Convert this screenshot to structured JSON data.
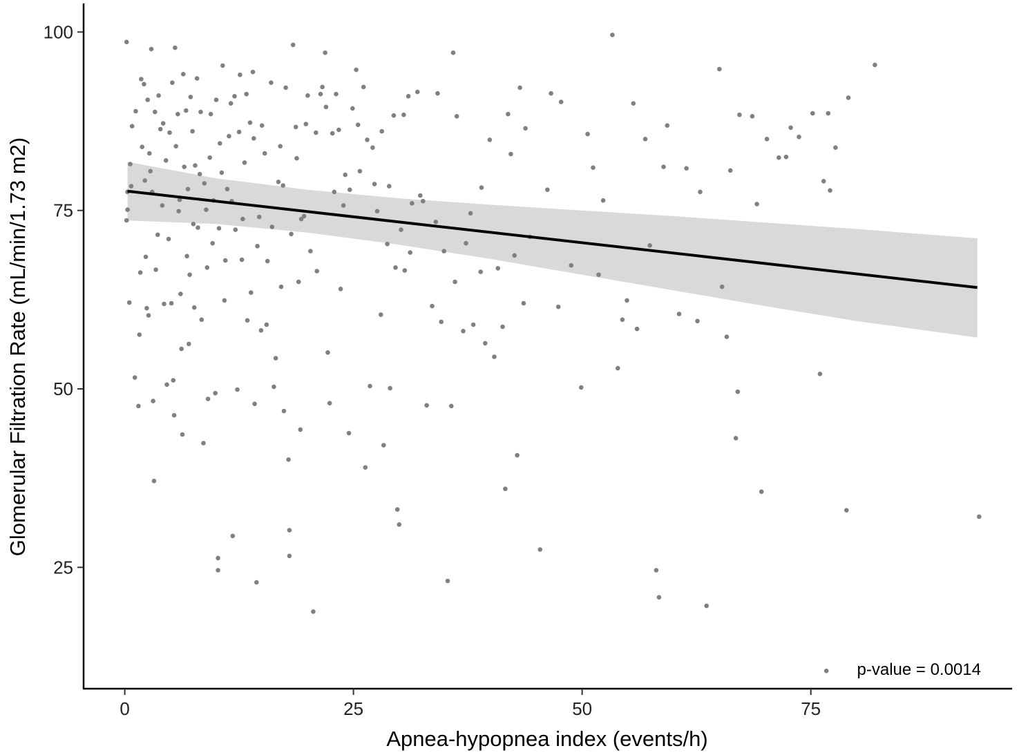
{
  "chart_data": {
    "type": "scatter",
    "xlabel": "Apnea-hypopnea index (events/h)",
    "ylabel": "Glomerular Filtration Rate (mL/min/1.73 m2)",
    "xlim": [
      -4.5,
      97
    ],
    "ylim": [
      8,
      104
    ],
    "x_ticks": [
      0,
      25,
      50,
      75
    ],
    "y_ticks": [
      25,
      50,
      75,
      100
    ],
    "x_tick_labels": [
      "0",
      "25",
      "50",
      "75"
    ],
    "y_tick_labels": [
      "25",
      "50",
      "75",
      "100"
    ],
    "grid": false,
    "annotation": "p-value = 0.0014",
    "colors": {
      "points": "#808080",
      "fit_line": "#000000",
      "confidence_band": "#d9d9d9",
      "axis": "#000000"
    },
    "fit_line": {
      "x": [
        0.3,
        93.2
      ],
      "y": [
        77.7,
        64.2
      ]
    },
    "confidence_band": {
      "x": [
        0.3,
        10,
        20,
        30,
        40,
        50,
        60,
        70,
        80,
        93.2
      ],
      "upper": [
        81.8,
        79.5,
        77.9,
        76.7,
        75.8,
        75.0,
        74.2,
        73.3,
        72.4,
        71.1
      ],
      "lower": [
        73.6,
        73.1,
        71.9,
        70.2,
        68.2,
        66.0,
        63.8,
        61.6,
        59.5,
        57.2
      ]
    },
    "points": [
      [
        0.2,
        98.6
      ],
      [
        2.9,
        97.6
      ],
      [
        5.5,
        97.8
      ],
      [
        0.2,
        73.6
      ],
      [
        0.3,
        75.1
      ],
      [
        0.5,
        62.1
      ],
      [
        0.7,
        78.4
      ],
      [
        0.8,
        86.8
      ],
      [
        1.1,
        51.6
      ],
      [
        1.5,
        47.6
      ],
      [
        1.6,
        57.6
      ],
      [
        1.8,
        93.4
      ],
      [
        2.1,
        92.7
      ],
      [
        2.3,
        68.5
      ],
      [
        2.4,
        61.3
      ],
      [
        2.5,
        90.5
      ],
      [
        2.7,
        83.0
      ],
      [
        2.8,
        80.5
      ],
      [
        3.0,
        77.6
      ],
      [
        3.1,
        48.3
      ],
      [
        3.2,
        37.1
      ],
      [
        3.4,
        66.7
      ],
      [
        3.7,
        91.1
      ],
      [
        3.9,
        86.4
      ],
      [
        4.1,
        75.7
      ],
      [
        4.3,
        61.9
      ],
      [
        4.6,
        50.6
      ],
      [
        4.9,
        85.9
      ],
      [
        5.1,
        62.0
      ],
      [
        5.3,
        51.2
      ],
      [
        5.4,
        46.3
      ],
      [
        5.8,
        88.5
      ],
      [
        6.0,
        76.5
      ],
      [
        6.2,
        55.6
      ],
      [
        6.3,
        43.6
      ],
      [
        6.5,
        81.1
      ],
      [
        6.8,
        68.6
      ],
      [
        7.0,
        56.3
      ],
      [
        7.2,
        90.9
      ],
      [
        7.5,
        73.1
      ],
      [
        7.6,
        61.4
      ],
      [
        7.9,
        93.5
      ],
      [
        8.2,
        80.1
      ],
      [
        8.4,
        59.7
      ],
      [
        8.6,
        42.4
      ],
      [
        8.9,
        75.1
      ],
      [
        9.1,
        48.6
      ],
      [
        9.4,
        88.5
      ],
      [
        9.6,
        70.4
      ],
      [
        9.9,
        49.4
      ],
      [
        10.2,
        26.3
      ],
      [
        10.2,
        24.6
      ],
      [
        10.4,
        84.4
      ],
      [
        10.7,
        95.3
      ],
      [
        10.9,
        62.4
      ],
      [
        11.2,
        78.0
      ],
      [
        11.6,
        90.0
      ],
      [
        11.8,
        29.4
      ],
      [
        12.1,
        72.3
      ],
      [
        12.3,
        49.9
      ],
      [
        12.6,
        94.0
      ],
      [
        12.8,
        68.1
      ],
      [
        13.1,
        81.7
      ],
      [
        13.4,
        59.6
      ],
      [
        13.7,
        87.3
      ],
      [
        14.0,
        94.4
      ],
      [
        14.2,
        47.9
      ],
      [
        14.4,
        22.9
      ],
      [
        14.7,
        74.1
      ],
      [
        14.9,
        58.2
      ],
      [
        15.3,
        83.0
      ],
      [
        15.6,
        67.9
      ],
      [
        16.0,
        92.9
      ],
      [
        16.3,
        50.3
      ],
      [
        16.8,
        79.0
      ],
      [
        17.1,
        64.3
      ],
      [
        17.4,
        46.9
      ],
      [
        17.6,
        92.2
      ],
      [
        17.9,
        40.1
      ],
      [
        18.0,
        26.6
      ],
      [
        18.0,
        30.2
      ],
      [
        18.4,
        98.2
      ],
      [
        18.7,
        86.7
      ],
      [
        19.0,
        65.0
      ],
      [
        19.2,
        44.3
      ],
      [
        19.6,
        74.2
      ],
      [
        20.0,
        91.1
      ],
      [
        20.6,
        18.8
      ],
      [
        21.0,
        66.5
      ],
      [
        21.4,
        91.3
      ],
      [
        21.9,
        97.1
      ],
      [
        22.2,
        55.1
      ],
      [
        22.4,
        48.0
      ],
      [
        22.7,
        85.8
      ],
      [
        23.1,
        91.3
      ],
      [
        23.6,
        64.0
      ],
      [
        24.1,
        80.0
      ],
      [
        24.5,
        43.8
      ],
      [
        24.9,
        89.3
      ],
      [
        25.3,
        94.7
      ],
      [
        25.7,
        80.5
      ],
      [
        26.1,
        92.3
      ],
      [
        26.3,
        39.0
      ],
      [
        26.8,
        50.4
      ],
      [
        27.1,
        83.8
      ],
      [
        27.6,
        74.9
      ],
      [
        28.0,
        60.4
      ],
      [
        28.3,
        42.1
      ],
      [
        28.7,
        70.3
      ],
      [
        29.0,
        50.1
      ],
      [
        29.4,
        88.3
      ],
      [
        29.8,
        33.1
      ],
      [
        30.0,
        31.0
      ],
      [
        30.2,
        72.3
      ],
      [
        30.6,
        66.6
      ],
      [
        31.0,
        91.0
      ],
      [
        31.4,
        76.0
      ],
      [
        32.0,
        91.6
      ],
      [
        32.6,
        76.3
      ],
      [
        33.0,
        47.7
      ],
      [
        33.6,
        61.6
      ],
      [
        34.2,
        91.4
      ],
      [
        34.6,
        59.4
      ],
      [
        35.3,
        23.1
      ],
      [
        35.7,
        47.6
      ],
      [
        35.9,
        97.1
      ],
      [
        36.3,
        88.2
      ],
      [
        37.0,
        58.1
      ],
      [
        37.8,
        74.6
      ],
      [
        38.1,
        59.0
      ],
      [
        38.9,
        66.4
      ],
      [
        39.4,
        56.4
      ],
      [
        39.9,
        84.9
      ],
      [
        40.4,
        54.5
      ],
      [
        41.3,
        58.7
      ],
      [
        41.6,
        36.0
      ],
      [
        41.9,
        88.5
      ],
      [
        42.2,
        82.9
      ],
      [
        42.6,
        68.7
      ],
      [
        42.9,
        40.7
      ],
      [
        43.2,
        92.2
      ],
      [
        43.6,
        62.0
      ],
      [
        43.8,
        86.5
      ],
      [
        45.4,
        27.5
      ],
      [
        46.6,
        91.4
      ],
      [
        47.7,
        90.2
      ],
      [
        49.9,
        50.2
      ],
      [
        50.6,
        85.7
      ],
      [
        51.2,
        81.0
      ],
      [
        51.8,
        66.0
      ],
      [
        53.3,
        99.6
      ],
      [
        53.9,
        52.9
      ],
      [
        54.4,
        59.7
      ],
      [
        55.6,
        90.0
      ],
      [
        56.0,
        58.4
      ],
      [
        56.9,
        85.0
      ],
      [
        57.4,
        70.1
      ],
      [
        58.1,
        24.6
      ],
      [
        58.4,
        20.8
      ],
      [
        58.9,
        81.1
      ],
      [
        59.3,
        86.9
      ],
      [
        61.4,
        80.9
      ],
      [
        62.9,
        77.6
      ],
      [
        63.6,
        19.6
      ],
      [
        65.0,
        94.8
      ],
      [
        65.3,
        64.3
      ],
      [
        65.8,
        57.3
      ],
      [
        66.2,
        80.6
      ],
      [
        66.8,
        43.1
      ],
      [
        67.0,
        49.6
      ],
      [
        67.2,
        88.4
      ],
      [
        68.6,
        88.2
      ],
      [
        69.1,
        75.9
      ],
      [
        69.6,
        35.6
      ],
      [
        70.2,
        85.0
      ],
      [
        71.5,
        82.4
      ],
      [
        72.3,
        82.5
      ],
      [
        72.8,
        86.6
      ],
      [
        73.7,
        85.3
      ],
      [
        75.2,
        88.6
      ],
      [
        76.0,
        52.1
      ],
      [
        76.4,
        79.1
      ],
      [
        76.7,
        10.5
      ],
      [
        76.9,
        88.6
      ],
      [
        77.1,
        77.8
      ],
      [
        77.7,
        83.8
      ],
      [
        78.9,
        33.0
      ],
      [
        79.1,
        90.8
      ],
      [
        82.0,
        95.4
      ],
      [
        93.4,
        32.1
      ],
      [
        0.3,
        77.6
      ],
      [
        0.6,
        81.5
      ],
      [
        1.2,
        88.9
      ],
      [
        1.7,
        66.3
      ],
      [
        1.9,
        83.9
      ],
      [
        2.2,
        79.2
      ],
      [
        2.6,
        60.3
      ],
      [
        3.3,
        88.8
      ],
      [
        3.6,
        71.6
      ],
      [
        4.2,
        87.2
      ],
      [
        4.5,
        82.0
      ],
      [
        4.8,
        71.0
      ],
      [
        5.2,
        92.9
      ],
      [
        5.6,
        84.0
      ],
      [
        5.9,
        74.9
      ],
      [
        6.1,
        63.3
      ],
      [
        6.4,
        94.1
      ],
      [
        6.7,
        89.0
      ],
      [
        6.9,
        78.0
      ],
      [
        7.1,
        66.0
      ],
      [
        7.4,
        86.1
      ],
      [
        7.7,
        81.3
      ],
      [
        8.0,
        72.6
      ],
      [
        8.3,
        88.8
      ],
      [
        8.7,
        78.8
      ],
      [
        9.0,
        67.0
      ],
      [
        9.3,
        82.4
      ],
      [
        9.7,
        76.4
      ],
      [
        10.0,
        90.5
      ],
      [
        10.3,
        72.5
      ],
      [
        10.6,
        80.3
      ],
      [
        11.0,
        68.0
      ],
      [
        11.4,
        85.4
      ],
      [
        11.7,
        76.3
      ],
      [
        12.0,
        91.0
      ],
      [
        12.5,
        86.0
      ],
      [
        12.9,
        73.8
      ],
      [
        13.3,
        91.3
      ],
      [
        13.8,
        63.5
      ],
      [
        14.1,
        85.1
      ],
      [
        14.5,
        70.0
      ],
      [
        15.0,
        86.9
      ],
      [
        15.5,
        59.0
      ],
      [
        16.1,
        72.7
      ],
      [
        16.5,
        54.3
      ],
      [
        17.0,
        84.0
      ],
      [
        17.3,
        78.5
      ],
      [
        18.2,
        71.7
      ],
      [
        18.8,
        82.3
      ],
      [
        19.3,
        73.8
      ],
      [
        19.8,
        87.1
      ],
      [
        20.3,
        69.3
      ],
      [
        20.9,
        85.9
      ],
      [
        21.6,
        92.3
      ],
      [
        22.0,
        89.5
      ],
      [
        22.9,
        77.6
      ],
      [
        23.4,
        86.3
      ],
      [
        23.9,
        75.7
      ],
      [
        24.6,
        77.9
      ],
      [
        25.5,
        87.0
      ],
      [
        26.5,
        84.9
      ],
      [
        27.3,
        78.7
      ],
      [
        28.1,
        86.1
      ],
      [
        28.9,
        78.4
      ],
      [
        29.6,
        67.0
      ],
      [
        30.5,
        88.4
      ],
      [
        31.2,
        69.1
      ],
      [
        32.3,
        77.1
      ],
      [
        34.0,
        73.4
      ],
      [
        34.9,
        69.3
      ],
      [
        36.1,
        65.0
      ],
      [
        37.3,
        70.4
      ],
      [
        39.0,
        78.2
      ],
      [
        40.8,
        66.9
      ],
      [
        44.3,
        71.3
      ],
      [
        46.2,
        77.9
      ],
      [
        47.4,
        61.5
      ],
      [
        48.8,
        67.3
      ],
      [
        52.3,
        76.4
      ],
      [
        54.9,
        62.4
      ],
      [
        60.6,
        60.5
      ],
      [
        62.6,
        59.5
      ]
    ]
  }
}
